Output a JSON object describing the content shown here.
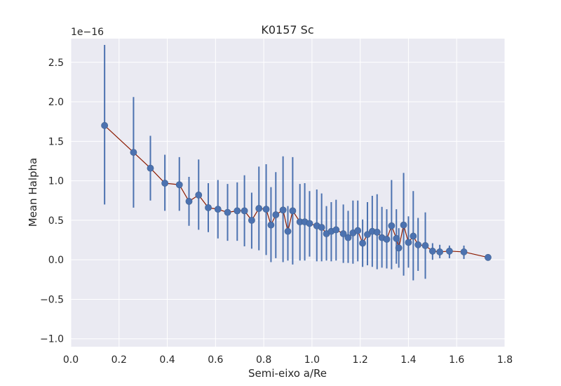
{
  "chart_data": {
    "type": "scatter",
    "title": "K0157 Sc",
    "xlabel": "Semi-eixo a/Re",
    "ylabel": "Mean Halpha",
    "y_offset_text": "1e−16",
    "y_scale_exponent": -16,
    "xlim": [
      0.0,
      1.8
    ],
    "ylim": [
      -1.1,
      2.8
    ],
    "x_ticks": [
      0.0,
      0.2,
      0.4,
      0.6,
      0.8,
      1.0,
      1.2,
      1.4,
      1.6,
      1.8
    ],
    "x_tick_labels": [
      "0.0",
      "0.2",
      "0.4",
      "0.6",
      "0.8",
      "1.0",
      "1.2",
      "1.4",
      "1.6",
      "1.8"
    ],
    "y_ticks": [
      -1.0,
      -0.5,
      0.0,
      0.5,
      1.0,
      1.5,
      2.0,
      2.5
    ],
    "y_tick_labels": [
      "−1.0",
      "−0.5",
      "0.0",
      "0.5",
      "1.0",
      "1.5",
      "2.0",
      "2.5"
    ],
    "grid": true,
    "colors": {
      "background": "#eaeaf2",
      "grid": "#ffffff",
      "points": "#4c72b0",
      "errorbars": "#4c72b0",
      "line": "#8b1a00"
    },
    "points": [
      {
        "x": 0.14,
        "y": 1.7,
        "lo": 0.7,
        "hi": 2.72
      },
      {
        "x": 0.26,
        "y": 1.36,
        "lo": 0.66,
        "hi": 2.06
      },
      {
        "x": 0.33,
        "y": 1.16,
        "lo": 0.75,
        "hi": 1.57
      },
      {
        "x": 0.39,
        "y": 0.97,
        "lo": 0.62,
        "hi": 1.33
      },
      {
        "x": 0.45,
        "y": 0.95,
        "lo": 0.62,
        "hi": 1.3
      },
      {
        "x": 0.49,
        "y": 0.74,
        "lo": 0.43,
        "hi": 1.05
      },
      {
        "x": 0.53,
        "y": 0.82,
        "lo": 0.38,
        "hi": 1.27
      },
      {
        "x": 0.57,
        "y": 0.66,
        "lo": 0.35,
        "hi": 0.97
      },
      {
        "x": 0.61,
        "y": 0.64,
        "lo": 0.27,
        "hi": 1.01
      },
      {
        "x": 0.65,
        "y": 0.6,
        "lo": 0.24,
        "hi": 0.96
      },
      {
        "x": 0.69,
        "y": 0.62,
        "lo": 0.24,
        "hi": 0.98
      },
      {
        "x": 0.72,
        "y": 0.62,
        "lo": 0.17,
        "hi": 1.07
      },
      {
        "x": 0.75,
        "y": 0.5,
        "lo": 0.14,
        "hi": 0.85
      },
      {
        "x": 0.78,
        "y": 0.65,
        "lo": 0.12,
        "hi": 1.18
      },
      {
        "x": 0.81,
        "y": 0.64,
        "lo": 0.06,
        "hi": 1.21
      },
      {
        "x": 0.83,
        "y": 0.44,
        "lo": -0.03,
        "hi": 0.92
      },
      {
        "x": 0.85,
        "y": 0.57,
        "lo": 0.02,
        "hi": 1.11
      },
      {
        "x": 0.88,
        "y": 0.63,
        "lo": -0.03,
        "hi": 1.31
      },
      {
        "x": 0.9,
        "y": 0.36,
        "lo": -0.01,
        "hi": 0.68
      },
      {
        "x": 0.92,
        "y": 0.62,
        "lo": -0.06,
        "hi": 1.3
      },
      {
        "x": 0.95,
        "y": 0.48,
        "lo": -0.01,
        "hi": 0.96
      },
      {
        "x": 0.97,
        "y": 0.48,
        "lo": -0.01,
        "hi": 0.97
      },
      {
        "x": 0.99,
        "y": 0.46,
        "lo": 0.04,
        "hi": 0.87
      },
      {
        "x": 1.02,
        "y": 0.43,
        "lo": -0.02,
        "hi": 0.89
      },
      {
        "x": 1.04,
        "y": 0.41,
        "lo": -0.02,
        "hi": 0.84
      },
      {
        "x": 1.06,
        "y": 0.33,
        "lo": -0.01,
        "hi": 0.68
      },
      {
        "x": 1.08,
        "y": 0.36,
        "lo": -0.02,
        "hi": 0.73
      },
      {
        "x": 1.1,
        "y": 0.38,
        "lo": -0.01,
        "hi": 0.76
      },
      {
        "x": 1.13,
        "y": 0.33,
        "lo": -0.04,
        "hi": 0.7
      },
      {
        "x": 1.15,
        "y": 0.28,
        "lo": -0.04,
        "hi": 0.62
      },
      {
        "x": 1.17,
        "y": 0.34,
        "lo": -0.05,
        "hi": 0.75
      },
      {
        "x": 1.19,
        "y": 0.37,
        "lo": -0.02,
        "hi": 0.75
      },
      {
        "x": 1.21,
        "y": 0.21,
        "lo": -0.09,
        "hi": 0.51
      },
      {
        "x": 1.23,
        "y": 0.32,
        "lo": -0.07,
        "hi": 0.73
      },
      {
        "x": 1.25,
        "y": 0.36,
        "lo": -0.09,
        "hi": 0.81
      },
      {
        "x": 1.27,
        "y": 0.35,
        "lo": -0.12,
        "hi": 0.83
      },
      {
        "x": 1.29,
        "y": 0.28,
        "lo": -0.1,
        "hi": 0.67
      },
      {
        "x": 1.31,
        "y": 0.26,
        "lo": -0.11,
        "hi": 0.64
      },
      {
        "x": 1.33,
        "y": 0.43,
        "lo": -0.12,
        "hi": 1.01
      },
      {
        "x": 1.35,
        "y": 0.27,
        "lo": -0.05,
        "hi": 0.64
      },
      {
        "x": 1.36,
        "y": 0.15,
        "lo": -0.1,
        "hi": 0.4
      },
      {
        "x": 1.38,
        "y": 0.44,
        "lo": -0.2,
        "hi": 1.1
      },
      {
        "x": 1.4,
        "y": 0.22,
        "lo": -0.1,
        "hi": 0.55
      },
      {
        "x": 1.42,
        "y": 0.3,
        "lo": -0.26,
        "hi": 0.87
      },
      {
        "x": 1.44,
        "y": 0.19,
        "lo": -0.14,
        "hi": 0.53
      },
      {
        "x": 1.47,
        "y": 0.18,
        "lo": -0.24,
        "hi": 0.6
      },
      {
        "x": 1.5,
        "y": 0.11,
        "lo": 0.0,
        "hi": 0.21
      },
      {
        "x": 1.53,
        "y": 0.1,
        "lo": 0.02,
        "hi": 0.19
      },
      {
        "x": 1.57,
        "y": 0.11,
        "lo": 0.02,
        "hi": 0.18
      },
      {
        "x": 1.63,
        "y": 0.1,
        "lo": 0.01,
        "hi": 0.18
      },
      {
        "x": 1.73,
        "y": 0.03,
        "lo": 0.03,
        "hi": 0.03
      }
    ]
  }
}
